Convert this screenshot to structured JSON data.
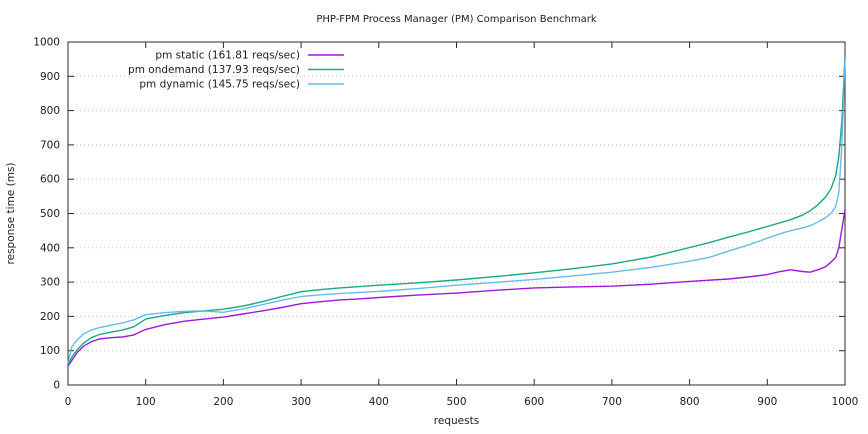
{
  "chart_data": {
    "type": "line",
    "title": "PHP-FPM Process Manager (PM) Comparison Benchmark",
    "xlabel": "requests",
    "ylabel": "response time (ms)",
    "xlim": [
      0,
      1000
    ],
    "ylim": [
      0,
      1000
    ],
    "xticks": [
      0,
      100,
      200,
      300,
      400,
      500,
      600,
      700,
      800,
      900,
      1000
    ],
    "yticks": [
      0,
      100,
      200,
      300,
      400,
      500,
      600,
      700,
      800,
      900,
      1000
    ],
    "grid": "horizontal-dotted",
    "grid_color": "#c8c8c8",
    "border_color": "#2a2a2a",
    "legend_position": "top-left-inside",
    "series": [
      {
        "name": "pm static (161.81 reqs/sec)",
        "color": "#9400d3",
        "points": [
          [
            0,
            55
          ],
          [
            5,
            72
          ],
          [
            12,
            95
          ],
          [
            20,
            113
          ],
          [
            30,
            126
          ],
          [
            40,
            134
          ],
          [
            55,
            138
          ],
          [
            70,
            140
          ],
          [
            85,
            146
          ],
          [
            100,
            162
          ],
          [
            125,
            176
          ],
          [
            150,
            186
          ],
          [
            175,
            192
          ],
          [
            200,
            198
          ],
          [
            225,
            207
          ],
          [
            250,
            216
          ],
          [
            275,
            226
          ],
          [
            300,
            237
          ],
          [
            325,
            243
          ],
          [
            350,
            248
          ],
          [
            375,
            251
          ],
          [
            400,
            255
          ],
          [
            450,
            262
          ],
          [
            500,
            268
          ],
          [
            550,
            276
          ],
          [
            600,
            283
          ],
          [
            650,
            286
          ],
          [
            700,
            288
          ],
          [
            750,
            294
          ],
          [
            800,
            302
          ],
          [
            850,
            309
          ],
          [
            875,
            315
          ],
          [
            900,
            322
          ],
          [
            915,
            330
          ],
          [
            930,
            336
          ],
          [
            945,
            331
          ],
          [
            955,
            329
          ],
          [
            965,
            336
          ],
          [
            975,
            345
          ],
          [
            982,
            358
          ],
          [
            988,
            372
          ],
          [
            992,
            400
          ],
          [
            996,
            455
          ],
          [
            1000,
            510
          ]
        ]
      },
      {
        "name": "pm ondemand (137.93 reqs/sec)",
        "color": "#009e73",
        "points": [
          [
            0,
            60
          ],
          [
            5,
            82
          ],
          [
            12,
            103
          ],
          [
            20,
            122
          ],
          [
            30,
            138
          ],
          [
            40,
            147
          ],
          [
            55,
            154
          ],
          [
            70,
            160
          ],
          [
            85,
            170
          ],
          [
            100,
            192
          ],
          [
            125,
            203
          ],
          [
            150,
            211
          ],
          [
            175,
            216
          ],
          [
            200,
            221
          ],
          [
            225,
            230
          ],
          [
            250,
            243
          ],
          [
            275,
            258
          ],
          [
            300,
            272
          ],
          [
            325,
            278
          ],
          [
            350,
            283
          ],
          [
            375,
            287
          ],
          [
            400,
            291
          ],
          [
            450,
            298
          ],
          [
            500,
            306
          ],
          [
            550,
            316
          ],
          [
            600,
            327
          ],
          [
            650,
            339
          ],
          [
            700,
            353
          ],
          [
            750,
            373
          ],
          [
            800,
            401
          ],
          [
            825,
            415
          ],
          [
            850,
            431
          ],
          [
            875,
            446
          ],
          [
            900,
            462
          ],
          [
            915,
            472
          ],
          [
            930,
            482
          ],
          [
            945,
            495
          ],
          [
            955,
            508
          ],
          [
            965,
            525
          ],
          [
            975,
            548
          ],
          [
            982,
            572
          ],
          [
            988,
            610
          ],
          [
            992,
            665
          ],
          [
            996,
            770
          ],
          [
            1000,
            958
          ]
        ]
      },
      {
        "name": "pm dynamic (145.75 reqs/sec)",
        "color": "#56b4e9",
        "points": [
          [
            0,
            65
          ],
          [
            5,
            112
          ],
          [
            12,
            132
          ],
          [
            20,
            149
          ],
          [
            30,
            160
          ],
          [
            40,
            167
          ],
          [
            55,
            174
          ],
          [
            70,
            181
          ],
          [
            85,
            190
          ],
          [
            100,
            205
          ],
          [
            125,
            211
          ],
          [
            150,
            215
          ],
          [
            175,
            216
          ],
          [
            200,
            212
          ],
          [
            225,
            222
          ],
          [
            250,
            234
          ],
          [
            275,
            247
          ],
          [
            300,
            258
          ],
          [
            325,
            263
          ],
          [
            350,
            267
          ],
          [
            375,
            270
          ],
          [
            400,
            273
          ],
          [
            450,
            281
          ],
          [
            500,
            291
          ],
          [
            550,
            299
          ],
          [
            600,
            308
          ],
          [
            650,
            318
          ],
          [
            700,
            329
          ],
          [
            750,
            343
          ],
          [
            800,
            361
          ],
          [
            825,
            372
          ],
          [
            850,
            390
          ],
          [
            875,
            408
          ],
          [
            900,
            428
          ],
          [
            915,
            440
          ],
          [
            930,
            450
          ],
          [
            945,
            458
          ],
          [
            955,
            464
          ],
          [
            965,
            475
          ],
          [
            975,
            488
          ],
          [
            982,
            500
          ],
          [
            988,
            520
          ],
          [
            992,
            560
          ],
          [
            996,
            700
          ],
          [
            1000,
            952
          ]
        ]
      }
    ]
  }
}
